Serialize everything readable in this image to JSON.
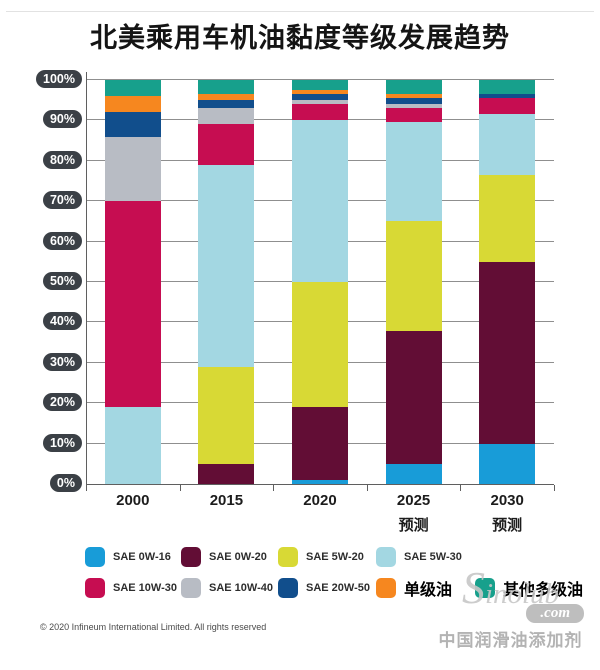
{
  "title": "北美乘用车机油黏度等级发展趋势",
  "footer": {
    "copyright": "© 2020 Infineum International Limited. All rights reserved"
  },
  "watermark": {
    "brand": "Sinolub",
    "domain": ".com",
    "caption": "中国润滑油添加剂"
  },
  "colors": {
    "axis_badge_bg": "#3b4046",
    "axis_badge_text": "#ffffff",
    "gridline": "#8f8f8f",
    "axis_line": "#5f5f5f"
  },
  "chart_data": {
    "type": "bar",
    "subtype": "stacked-percent",
    "title": "北美乘用车机油黏度等级发展趋势",
    "categories": [
      "2000",
      "2015",
      "2020",
      "2025",
      "2030"
    ],
    "category_sublabels": [
      "",
      "",
      "",
      "预测",
      "预测"
    ],
    "y_ticks": [
      "0%",
      "10%",
      "20%",
      "30%",
      "40%",
      "50%",
      "60%",
      "70%",
      "80%",
      "90%",
      "100%"
    ],
    "ylim": [
      0,
      100
    ],
    "grid": true,
    "legend_position": "bottom",
    "series": [
      {
        "name": "SAE 0W-16",
        "color": "#189cd8",
        "values": [
          0,
          0,
          1,
          5,
          10
        ]
      },
      {
        "name": "SAE 0W-20",
        "color": "#620d35",
        "values": [
          0,
          5,
          18,
          33,
          45
        ]
      },
      {
        "name": "SAE 5W-20",
        "color": "#d8d935",
        "values": [
          0,
          24,
          31,
          27,
          21.5
        ]
      },
      {
        "name": "SAE 5W-30",
        "color": "#a3d7e2",
        "values": [
          19,
          50,
          40,
          24.5,
          15
        ]
      },
      {
        "name": "SAE 10W-30",
        "color": "#c60d51",
        "values": [
          51,
          10,
          4,
          3.5,
          4
        ]
      },
      {
        "name": "SAE 10W-40",
        "color": "#b8bcc4",
        "values": [
          16,
          4,
          1,
          1,
          0
        ]
      },
      {
        "name": "SAE 20W-50",
        "color": "#114e8c",
        "values": [
          6,
          2,
          1.5,
          1.5,
          1
        ]
      },
      {
        "name": "单级油",
        "color": "#f6871f",
        "values": [
          4,
          1.5,
          1,
          1,
          0
        ]
      },
      {
        "name": "其他多级油",
        "color": "#17a08c",
        "values": [
          4,
          3.5,
          2.5,
          3.5,
          3.5
        ]
      }
    ]
  }
}
